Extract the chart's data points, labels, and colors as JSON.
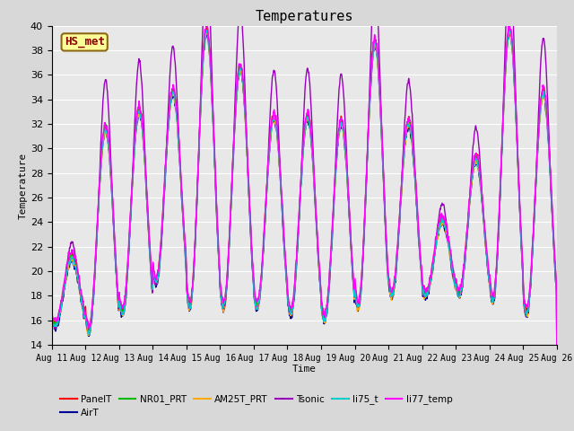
{
  "title": "Temperatures",
  "xlabel": "Time",
  "ylabel": "Temperature",
  "ylim": [
    14,
    40
  ],
  "x_tick_labels": [
    "Aug 11",
    "Aug 12",
    "Aug 13",
    "Aug 14",
    "Aug 15",
    "Aug 16",
    "Aug 17",
    "Aug 18",
    "Aug 19",
    "Aug 20",
    "Aug 21",
    "Aug 22",
    "Aug 23",
    "Aug 24",
    "Aug 25",
    "Aug 26"
  ],
  "annotation_text": "HS_met",
  "annotation_color": "#8b0000",
  "annotation_bg": "#ffff99",
  "annotation_border": "#8b6914",
  "series": [
    {
      "label": "PanelT",
      "color": "#ff0000",
      "lw": 1.0
    },
    {
      "label": "AirT",
      "color": "#000099",
      "lw": 1.0
    },
    {
      "label": "NR01_PRT",
      "color": "#00bb00",
      "lw": 1.0
    },
    {
      "label": "AM25T_PRT",
      "color": "#ffaa00",
      "lw": 1.0
    },
    {
      "label": "Tsonic",
      "color": "#9900bb",
      "lw": 1.0
    },
    {
      "label": "li75_t",
      "color": "#00cccc",
      "lw": 1.0
    },
    {
      "label": "li77_temp",
      "color": "#ff00ff",
      "lw": 1.0
    }
  ],
  "bg_color": "#e8e8e8",
  "grid_color": "#ffffff",
  "title_fontsize": 11,
  "tick_fontsize": 7
}
